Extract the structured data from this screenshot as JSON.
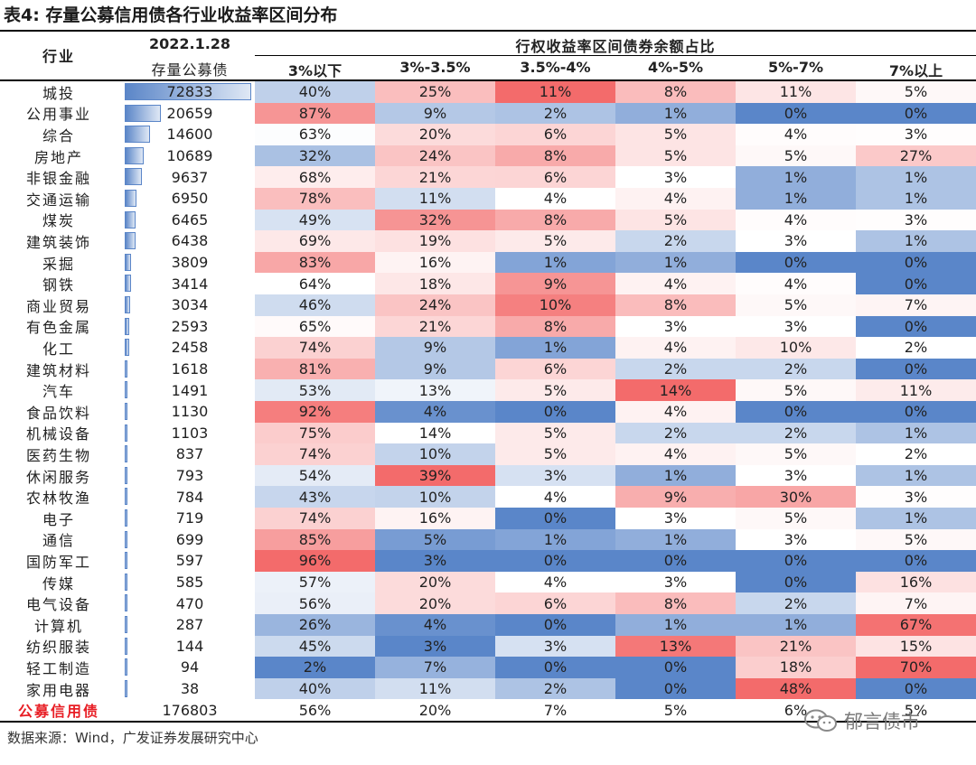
{
  "title": "表4:  存量公募信用债各行业收益率区间分布",
  "header": {
    "industry_label": "行业",
    "date_label": "2022.1.28",
    "amount_label": "存量公募债",
    "group_label": "行权收益率区间债券余额占比",
    "bucket_labels": [
      "3%以下",
      "3%-3.5%",
      "3.5%-4%",
      "4%-5%",
      "5%-7%",
      "7%以上"
    ]
  },
  "chart_data": {
    "type": "table",
    "title": "存量公募信用债各行业收益率区间分布",
    "columns": [
      "行业",
      "存量公募债",
      "3%以下",
      "3%-3.5%",
      "3.5%-4%",
      "4%-5%",
      "5%-7%",
      "7%以上"
    ],
    "amount_max": 72833,
    "rows": [
      {
        "industry": "城投",
        "amount": 72833,
        "pct": [
          40,
          25,
          11,
          8,
          11,
          5
        ]
      },
      {
        "industry": "公用事业",
        "amount": 20659,
        "pct": [
          87,
          9,
          2,
          1,
          0,
          0
        ]
      },
      {
        "industry": "综合",
        "amount": 14600,
        "pct": [
          63,
          20,
          6,
          5,
          4,
          3
        ]
      },
      {
        "industry": "房地产",
        "amount": 10689,
        "pct": [
          32,
          24,
          8,
          5,
          5,
          27
        ]
      },
      {
        "industry": "非银金融",
        "amount": 9637,
        "pct": [
          68,
          21,
          6,
          3,
          1,
          1
        ]
      },
      {
        "industry": "交通运输",
        "amount": 6950,
        "pct": [
          78,
          11,
          4,
          4,
          1,
          1
        ]
      },
      {
        "industry": "煤炭",
        "amount": 6465,
        "pct": [
          49,
          32,
          8,
          5,
          4,
          3
        ]
      },
      {
        "industry": "建筑装饰",
        "amount": 6438,
        "pct": [
          69,
          19,
          5,
          2,
          3,
          1
        ]
      },
      {
        "industry": "采掘",
        "amount": 3809,
        "pct": [
          83,
          16,
          1,
          1,
          0,
          0
        ]
      },
      {
        "industry": "钢铁",
        "amount": 3414,
        "pct": [
          64,
          18,
          9,
          4,
          4,
          0
        ]
      },
      {
        "industry": "商业贸易",
        "amount": 3034,
        "pct": [
          46,
          24,
          10,
          8,
          5,
          7
        ]
      },
      {
        "industry": "有色金属",
        "amount": 2593,
        "pct": [
          65,
          21,
          8,
          3,
          3,
          0
        ]
      },
      {
        "industry": "化工",
        "amount": 2458,
        "pct": [
          74,
          9,
          1,
          4,
          10,
          2
        ]
      },
      {
        "industry": "建筑材料",
        "amount": 1618,
        "pct": [
          81,
          9,
          6,
          2,
          2,
          0
        ]
      },
      {
        "industry": "汽车",
        "amount": 1491,
        "pct": [
          53,
          13,
          5,
          14,
          5,
          11
        ]
      },
      {
        "industry": "食品饮料",
        "amount": 1130,
        "pct": [
          92,
          4,
          0,
          4,
          0,
          0
        ]
      },
      {
        "industry": "机械设备",
        "amount": 1103,
        "pct": [
          75,
          14,
          5,
          2,
          2,
          1
        ]
      },
      {
        "industry": "医药生物",
        "amount": 837,
        "pct": [
          74,
          10,
          5,
          4,
          5,
          2
        ]
      },
      {
        "industry": "休闲服务",
        "amount": 793,
        "pct": [
          54,
          39,
          3,
          1,
          3,
          1
        ]
      },
      {
        "industry": "农林牧渔",
        "amount": 784,
        "pct": [
          43,
          10,
          4,
          9,
          30,
          3
        ]
      },
      {
        "industry": "电子",
        "amount": 719,
        "pct": [
          74,
          16,
          0,
          3,
          5,
          1
        ]
      },
      {
        "industry": "通信",
        "amount": 699,
        "pct": [
          85,
          5,
          1,
          1,
          3,
          5
        ]
      },
      {
        "industry": "国防军工",
        "amount": 597,
        "pct": [
          96,
          3,
          0,
          0,
          0,
          0
        ]
      },
      {
        "industry": "传媒",
        "amount": 585,
        "pct": [
          57,
          20,
          4,
          3,
          0,
          16
        ]
      },
      {
        "industry": "电气设备",
        "amount": 470,
        "pct": [
          56,
          20,
          6,
          8,
          2,
          7
        ]
      },
      {
        "industry": "计算机",
        "amount": 287,
        "pct": [
          26,
          4,
          0,
          1,
          1,
          67
        ]
      },
      {
        "industry": "纺织服装",
        "amount": 144,
        "pct": [
          45,
          3,
          3,
          13,
          21,
          15
        ]
      },
      {
        "industry": "轻工制造",
        "amount": 94,
        "pct": [
          2,
          7,
          0,
          0,
          18,
          70
        ]
      },
      {
        "industry": "家用电器",
        "amount": 38,
        "pct": [
          40,
          11,
          2,
          0,
          48,
          0
        ]
      },
      {
        "industry": "公募信用债",
        "amount": 176803,
        "pct": [
          56,
          20,
          7,
          5,
          6,
          5
        ],
        "is_total": true
      }
    ],
    "colors": {
      "high": "#f36b6b",
      "mid": "#ffffff",
      "low": "#5a86c9",
      "bar": "#5b86c8",
      "total_label": "#e81e25"
    }
  },
  "source": "数据来源：Wind，广发证券发展研究中心",
  "watermark": "郁言债市"
}
